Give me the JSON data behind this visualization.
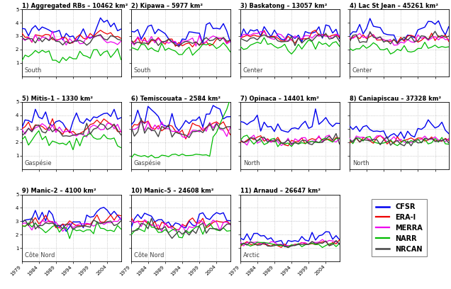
{
  "panels": [
    {
      "num": 1,
      "title": "Aggregated RBs – 10462 km²",
      "region": "South"
    },
    {
      "num": 2,
      "title": "Kipawa – 5977 km²",
      "region": "South"
    },
    {
      "num": 3,
      "title": "Baskatong – 13057 km²",
      "region": "Center"
    },
    {
      "num": 4,
      "title": "Lac St Jean – 45261 km²",
      "region": "Center"
    },
    {
      "num": 5,
      "title": "Mitis–1 – 1330 km²",
      "region": "Gaspésie"
    },
    {
      "num": 6,
      "title": "Temiscouata – 2584 km²",
      "region": "Gaspésie"
    },
    {
      "num": 7,
      "title": "Opinaca – 14401 km²",
      "region": "North"
    },
    {
      "num": 8,
      "title": "Caniapiscau – 37328 km²",
      "region": "North"
    },
    {
      "num": 9,
      "title": "Manic–2 – 4100 km²",
      "region": "Côte Nord"
    },
    {
      "num": 10,
      "title": "Manic–5 – 24608 km²",
      "region": "Côte Nord"
    },
    {
      "num": 11,
      "title": "Arnaud – 26647 km²",
      "region": "Arctic"
    }
  ],
  "years": [
    1979,
    1980,
    1981,
    1982,
    1983,
    1984,
    1985,
    1986,
    1987,
    1988,
    1989,
    1990,
    1991,
    1992,
    1993,
    1994,
    1995,
    1996,
    1997,
    1998,
    1999,
    2000,
    2001,
    2002,
    2003,
    2004,
    2005,
    2006,
    2007,
    2008
  ],
  "datasets": [
    {
      "name": "CFSR",
      "color": "#0000EE",
      "lw": 1.0
    },
    {
      "name": "ERA-I",
      "color": "#EE0000",
      "lw": 0.9
    },
    {
      "name": "MERRA",
      "color": "#EE00EE",
      "lw": 0.9
    },
    {
      "name": "NARR",
      "color": "#00BB00",
      "lw": 0.9
    },
    {
      "name": "NRCAN",
      "color": "#444444",
      "lw": 1.0
    }
  ],
  "ylim": [
    0,
    5
  ],
  "yticks": [
    1,
    2,
    3,
    4,
    5
  ],
  "xtick_labels": [
    "1979",
    "1984",
    "1989",
    "1994",
    "1999",
    "2004"
  ],
  "xtick_years": [
    1979,
    1984,
    1989,
    1994,
    1999,
    2004
  ],
  "bg_color": "#FFFFFF",
  "grid_color": "#AAAAAA",
  "title_fontsize": 6.0,
  "region_fontsize": 6.0,
  "tick_fontsize": 5.0,
  "legend_fontsize": 7.0
}
